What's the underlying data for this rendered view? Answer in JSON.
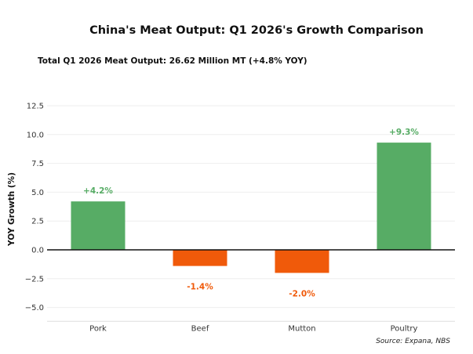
{
  "chart_data": {
    "type": "bar",
    "title": "China's Meat Output: Q1 2026's Growth Comparison",
    "subtitle": "Total Q1 2026 Meat Output: 26.62 Million MT (+4.8% YOY)",
    "xlabel": "",
    "ylabel": "YOY Growth (%)",
    "categories": [
      "Pork",
      "Beef",
      "Mutton",
      "Poultry"
    ],
    "values": [
      4.2,
      -1.4,
      -2.0,
      9.3
    ],
    "data_labels": [
      "+4.2%",
      "-1.4%",
      "-2.0%",
      "+9.3%"
    ],
    "ylim": [
      -6.2,
      13.5
    ],
    "yticks": [
      -5.0,
      -2.5,
      0.0,
      2.5,
      5.0,
      7.5,
      10.0,
      12.5
    ],
    "ytick_labels": [
      "−5.0",
      "−2.5",
      "0.0",
      "2.5",
      "5.0",
      "7.5",
      "10.0",
      "12.5"
    ],
    "grid": true,
    "colors": {
      "positive": "#57ac65",
      "negative": "#f05a0a",
      "positive_label": "#57ac65",
      "negative_label": "#f05a0a"
    },
    "source": "Source: Expana, NBS"
  }
}
